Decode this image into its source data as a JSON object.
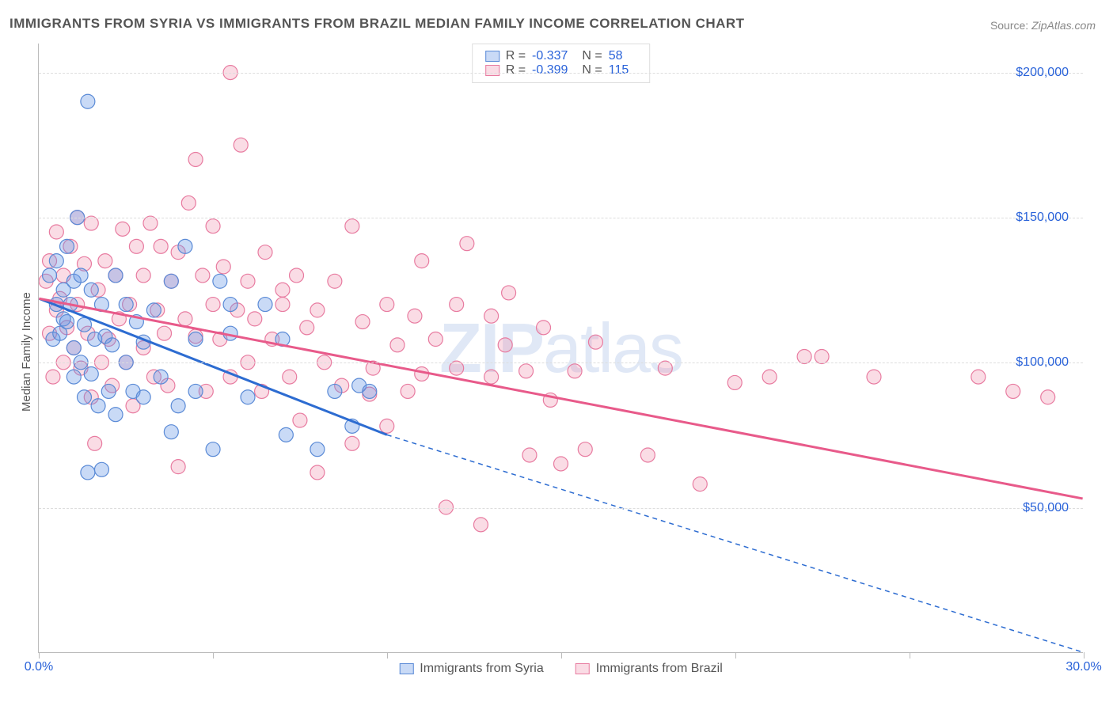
{
  "title": "IMMIGRANTS FROM SYRIA VS IMMIGRANTS FROM BRAZIL MEDIAN FAMILY INCOME CORRELATION CHART",
  "source_label": "Source:",
  "source_value": "ZipAtlas.com",
  "ylabel": "Median Family Income",
  "watermark_bold": "ZIP",
  "watermark_light": "atlas",
  "chart": {
    "type": "scatter",
    "xlim": [
      0,
      30
    ],
    "ylim": [
      0,
      210000
    ],
    "x_tick_positions": [
      0,
      5,
      10,
      15,
      20,
      25,
      30
    ],
    "x_axis_label_left": "0.0%",
    "x_axis_label_right": "30.0%",
    "y_gridlines": [
      50000,
      100000,
      150000,
      200000
    ],
    "y_tick_labels": [
      "$50,000",
      "$100,000",
      "$150,000",
      "$200,000"
    ],
    "background_color": "#ffffff",
    "grid_color": "#dddddd",
    "axis_color": "#bbbbbb",
    "series": [
      {
        "name": "Immigrants from Syria",
        "color_fill": "rgba(100,150,230,0.35)",
        "color_stroke": "#5a8ad6",
        "line_color": "#2d6cd1",
        "r_value": "-0.337",
        "n_value": "58",
        "trend_start": [
          0,
          122000
        ],
        "trend_end_solid": [
          10,
          75000
        ],
        "trend_end_dashed": [
          30,
          -20000
        ],
        "marker_radius": 9,
        "points": [
          [
            0.3,
            130000
          ],
          [
            0.4,
            108000
          ],
          [
            0.5,
            120000
          ],
          [
            0.5,
            135000
          ],
          [
            0.6,
            110000
          ],
          [
            0.7,
            125000
          ],
          [
            0.7,
            115000
          ],
          [
            0.8,
            140000
          ],
          [
            0.8,
            114000
          ],
          [
            0.9,
            120000
          ],
          [
            1.0,
            95000
          ],
          [
            1.0,
            105000
          ],
          [
            1.0,
            128000
          ],
          [
            1.1,
            150000
          ],
          [
            1.2,
            100000
          ],
          [
            1.2,
            130000
          ],
          [
            1.3,
            88000
          ],
          [
            1.3,
            113000
          ],
          [
            1.4,
            62000
          ],
          [
            1.4,
            190000
          ],
          [
            1.5,
            125000
          ],
          [
            1.5,
            96000
          ],
          [
            1.6,
            108000
          ],
          [
            1.7,
            85000
          ],
          [
            1.8,
            63000
          ],
          [
            1.8,
            120000
          ],
          [
            1.9,
            109000
          ],
          [
            2.0,
            90000
          ],
          [
            2.1,
            106000
          ],
          [
            2.2,
            130000
          ],
          [
            2.2,
            82000
          ],
          [
            2.5,
            100000
          ],
          [
            2.5,
            120000
          ],
          [
            2.7,
            90000
          ],
          [
            2.8,
            114000
          ],
          [
            3.0,
            88000
          ],
          [
            3.0,
            107000
          ],
          [
            3.3,
            118000
          ],
          [
            3.5,
            95000
          ],
          [
            3.8,
            76000
          ],
          [
            3.8,
            128000
          ],
          [
            4.0,
            85000
          ],
          [
            4.2,
            140000
          ],
          [
            4.5,
            90000
          ],
          [
            4.5,
            108000
          ],
          [
            5.0,
            70000
          ],
          [
            5.2,
            128000
          ],
          [
            5.5,
            110000
          ],
          [
            5.5,
            120000
          ],
          [
            6.0,
            88000
          ],
          [
            6.5,
            120000
          ],
          [
            7.0,
            108000
          ],
          [
            7.1,
            75000
          ],
          [
            8.0,
            70000
          ],
          [
            8.5,
            90000
          ],
          [
            9.0,
            78000
          ],
          [
            9.2,
            92000
          ],
          [
            9.5,
            90000
          ]
        ]
      },
      {
        "name": "Immigrants from Brazil",
        "color_fill": "rgba(240,140,170,0.30)",
        "color_stroke": "#e87ba0",
        "line_color": "#e85a8a",
        "r_value": "-0.399",
        "n_value": "115",
        "trend_start": [
          0,
          122000
        ],
        "trend_end_solid": [
          30,
          53000
        ],
        "marker_radius": 9,
        "points": [
          [
            0.2,
            128000
          ],
          [
            0.3,
            110000
          ],
          [
            0.3,
            135000
          ],
          [
            0.4,
            95000
          ],
          [
            0.5,
            118000
          ],
          [
            0.5,
            145000
          ],
          [
            0.6,
            122000
          ],
          [
            0.7,
            100000
          ],
          [
            0.7,
            130000
          ],
          [
            0.8,
            112000
          ],
          [
            0.9,
            140000
          ],
          [
            1.0,
            105000
          ],
          [
            1.1,
            150000
          ],
          [
            1.1,
            120000
          ],
          [
            1.2,
            98000
          ],
          [
            1.3,
            134000
          ],
          [
            1.4,
            110000
          ],
          [
            1.5,
            88000
          ],
          [
            1.5,
            148000
          ],
          [
            1.6,
            72000
          ],
          [
            1.7,
            125000
          ],
          [
            1.8,
            100000
          ],
          [
            1.9,
            135000
          ],
          [
            2.0,
            108000
          ],
          [
            2.1,
            92000
          ],
          [
            2.2,
            130000
          ],
          [
            2.3,
            115000
          ],
          [
            2.4,
            146000
          ],
          [
            2.5,
            100000
          ],
          [
            2.6,
            120000
          ],
          [
            2.7,
            85000
          ],
          [
            2.8,
            140000
          ],
          [
            3.0,
            105000
          ],
          [
            3.0,
            130000
          ],
          [
            3.2,
            148000
          ],
          [
            3.3,
            95000
          ],
          [
            3.4,
            118000
          ],
          [
            3.5,
            140000
          ],
          [
            3.6,
            110000
          ],
          [
            3.7,
            92000
          ],
          [
            3.8,
            128000
          ],
          [
            4.0,
            138000
          ],
          [
            4.0,
            64000
          ],
          [
            4.2,
            115000
          ],
          [
            4.3,
            155000
          ],
          [
            4.5,
            170000
          ],
          [
            4.5,
            109000
          ],
          [
            4.7,
            130000
          ],
          [
            4.8,
            90000
          ],
          [
            5.0,
            120000
          ],
          [
            5.0,
            147000
          ],
          [
            5.2,
            108000
          ],
          [
            5.3,
            133000
          ],
          [
            5.5,
            95000
          ],
          [
            5.5,
            200000
          ],
          [
            5.7,
            118000
          ],
          [
            5.8,
            175000
          ],
          [
            6.0,
            100000
          ],
          [
            6.0,
            128000
          ],
          [
            6.2,
            115000
          ],
          [
            6.4,
            90000
          ],
          [
            6.5,
            138000
          ],
          [
            6.7,
            108000
          ],
          [
            7.0,
            125000
          ],
          [
            7.0,
            120000
          ],
          [
            7.2,
            95000
          ],
          [
            7.4,
            130000
          ],
          [
            7.5,
            80000
          ],
          [
            7.7,
            112000
          ],
          [
            8.0,
            62000
          ],
          [
            8.0,
            118000
          ],
          [
            8.2,
            100000
          ],
          [
            8.5,
            128000
          ],
          [
            8.7,
            92000
          ],
          [
            9.0,
            147000
          ],
          [
            9.0,
            72000
          ],
          [
            9.3,
            114000
          ],
          [
            9.5,
            89000
          ],
          [
            9.6,
            98000
          ],
          [
            10,
            120000
          ],
          [
            10,
            78000
          ],
          [
            10.3,
            106000
          ],
          [
            10.6,
            90000
          ],
          [
            10.8,
            116000
          ],
          [
            11,
            135000
          ],
          [
            11,
            96000
          ],
          [
            11.4,
            108000
          ],
          [
            11.7,
            50000
          ],
          [
            12,
            120000
          ],
          [
            12,
            98000
          ],
          [
            12.3,
            141000
          ],
          [
            12.7,
            44000
          ],
          [
            13,
            116000
          ],
          [
            13,
            95000
          ],
          [
            13.4,
            106000
          ],
          [
            13.5,
            124000
          ],
          [
            14,
            97000
          ],
          [
            14.1,
            68000
          ],
          [
            14.5,
            112000
          ],
          [
            14.7,
            87000
          ],
          [
            15,
            65000
          ],
          [
            15.4,
            97000
          ],
          [
            15.7,
            70000
          ],
          [
            16,
            107000
          ],
          [
            17.5,
            68000
          ],
          [
            18,
            98000
          ],
          [
            19,
            58000
          ],
          [
            20,
            93000
          ],
          [
            21,
            95000
          ],
          [
            22,
            102000
          ],
          [
            22.5,
            102000
          ],
          [
            24,
            95000
          ],
          [
            27,
            95000
          ],
          [
            28,
            90000
          ],
          [
            29,
            88000
          ]
        ]
      }
    ]
  },
  "stats_labels": {
    "r": "R =",
    "n": "N ="
  }
}
